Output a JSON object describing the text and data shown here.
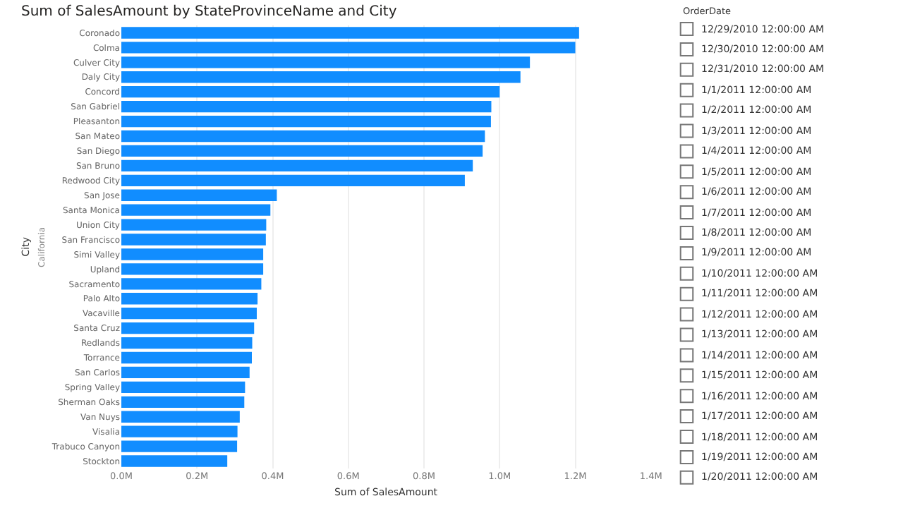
{
  "chart_data": [
    {
      "type": "bar",
      "orientation": "horizontal",
      "title": "Sum of SalesAmount by StateProvinceName and City",
      "xlabel": "Sum of SalesAmount",
      "ylabel": "City",
      "annotations": [
        "California"
      ],
      "categories": [
        "Coronado",
        "Colma",
        "Culver City",
        "Daly City",
        "Concord",
        "San Gabriel",
        "Pleasanton",
        "San Mateo",
        "San Diego",
        "San Bruno",
        "Redwood City",
        "San Jose",
        "Santa Monica",
        "Union City",
        "San Francisco",
        "Simi Valley",
        "Upland",
        "Sacramento",
        "Palo Alto",
        "Vacaville",
        "Santa Cruz",
        "Redlands",
        "Torrance",
        "San Carlos",
        "Spring Valley",
        "Sherman Oaks",
        "Van Nuys",
        "Visalia",
        "Trabuco Canyon",
        "Stockton"
      ],
      "series": [
        {
          "color": "#118dff",
          "values": [
            1.21,
            1.2,
            1.08,
            1.055,
            1.0,
            0.978,
            0.977,
            0.961,
            0.955,
            0.929,
            0.908,
            0.411,
            0.394,
            0.383,
            0.382,
            0.375,
            0.375,
            0.37,
            0.36,
            0.358,
            0.351,
            0.346,
            0.345,
            0.339,
            0.327,
            0.325,
            0.313,
            0.307,
            0.306,
            0.28
          ]
        }
      ],
      "xlim": [
        0,
        1.4
      ],
      "xticks": [
        {
          "value": 0,
          "label": "0.0M"
        },
        {
          "value": 0.2,
          "label": "0.2M"
        },
        {
          "value": 0.4,
          "label": "0.4M"
        },
        {
          "value": 0.6,
          "label": "0.6M"
        },
        {
          "value": 0.8,
          "label": "0.8M"
        },
        {
          "value": 1.0,
          "label": "1.0M"
        },
        {
          "value": 1.2,
          "label": "1.2M"
        },
        {
          "value": 1.4,
          "label": "1.4M"
        }
      ],
      "grid": "x"
    },
    {
      "type": "other",
      "title": "OrderDate",
      "annotations": [
        "12/29/2010 12:00:00 AM",
        "12/30/2010 12:00:00 AM",
        "12/31/2010 12:00:00 AM",
        "1/1/2011 12:00:00 AM",
        "1/2/2011 12:00:00 AM",
        "1/3/2011 12:00:00 AM",
        "1/4/2011 12:00:00 AM",
        "1/5/2011 12:00:00 AM",
        "1/6/2011 12:00:00 AM",
        "1/7/2011 12:00:00 AM",
        "1/8/2011 12:00:00 AM",
        "1/9/2011 12:00:00 AM",
        "1/10/2011 12:00:00 AM",
        "1/11/2011 12:00:00 AM",
        "1/12/2011 12:00:00 AM",
        "1/13/2011 12:00:00 AM",
        "1/14/2011 12:00:00 AM",
        "1/15/2011 12:00:00 AM",
        "1/16/2011 12:00:00 AM",
        "1/17/2011 12:00:00 AM",
        "1/18/2011 12:00:00 AM",
        "1/19/2011 12:00:00 AM",
        "1/20/2011 12:00:00 AM"
      ]
    }
  ]
}
